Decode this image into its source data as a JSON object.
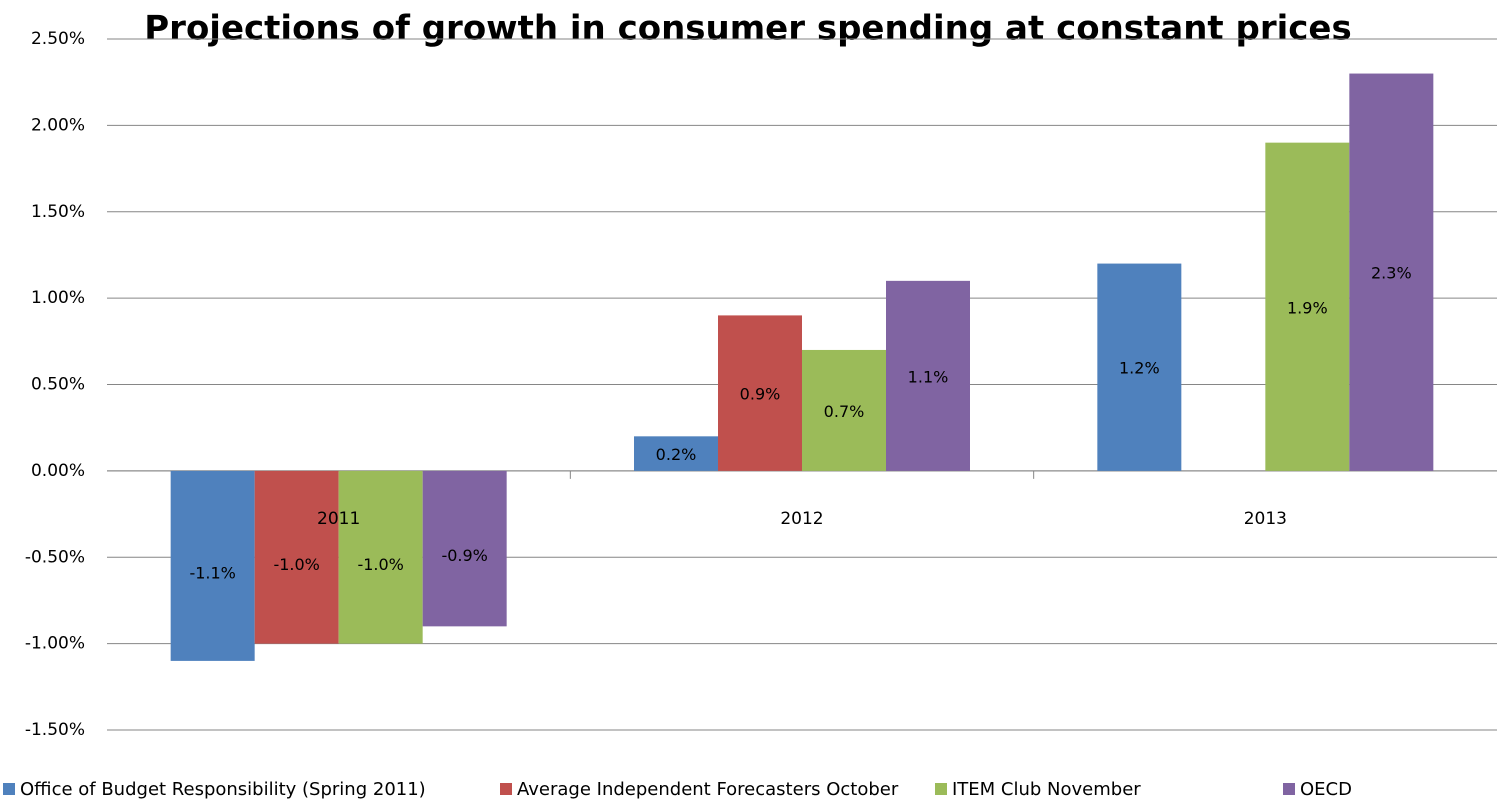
{
  "chart_data": {
    "type": "bar",
    "title": "Projections of growth in consumer spending at constant prices",
    "categories": [
      "2011",
      "2012",
      "2013"
    ],
    "series": [
      {
        "name": "Office of Budget Responsibility (Spring 2011)",
        "color": "#4f81bd",
        "values": [
          -1.1,
          0.2,
          1.2
        ],
        "value_labels": [
          "-1.1%",
          "0.2%",
          "1.2%"
        ]
      },
      {
        "name": "Average Independent Forecasters October",
        "color": "#c0504d",
        "values": [
          -1.0,
          0.9,
          null
        ],
        "value_labels": [
          "-1.0%",
          "0.9%",
          null
        ]
      },
      {
        "name": "ITEM Club November",
        "color": "#9bbb59",
        "values": [
          -1.0,
          0.7,
          1.9
        ],
        "value_labels": [
          "-1.0%",
          "0.7%",
          "1.9%"
        ]
      },
      {
        "name": "OECD",
        "color": "#8064a2",
        "values": [
          -0.9,
          1.1,
          2.3
        ],
        "value_labels": [
          "-0.9%",
          "1.1%",
          "2.3%"
        ]
      }
    ],
    "ylim": [
      -1.5,
      2.5
    ],
    "yticks": [
      {
        "value": -1.5,
        "label": "-1.50%"
      },
      {
        "value": -1.0,
        "label": "-1.00%"
      },
      {
        "value": -0.5,
        "label": "-0.50%"
      },
      {
        "value": 0,
        "label": "0.00%"
      },
      {
        "value": 0.5,
        "label": "0.50%"
      },
      {
        "value": 1.0,
        "label": "1.00%"
      },
      {
        "value": 1.5,
        "label": "1.50%"
      },
      {
        "value": 2.0,
        "label": "2.00%"
      },
      {
        "value": 2.5,
        "label": "2.50%"
      }
    ],
    "grid": true,
    "legend": "bottom"
  }
}
